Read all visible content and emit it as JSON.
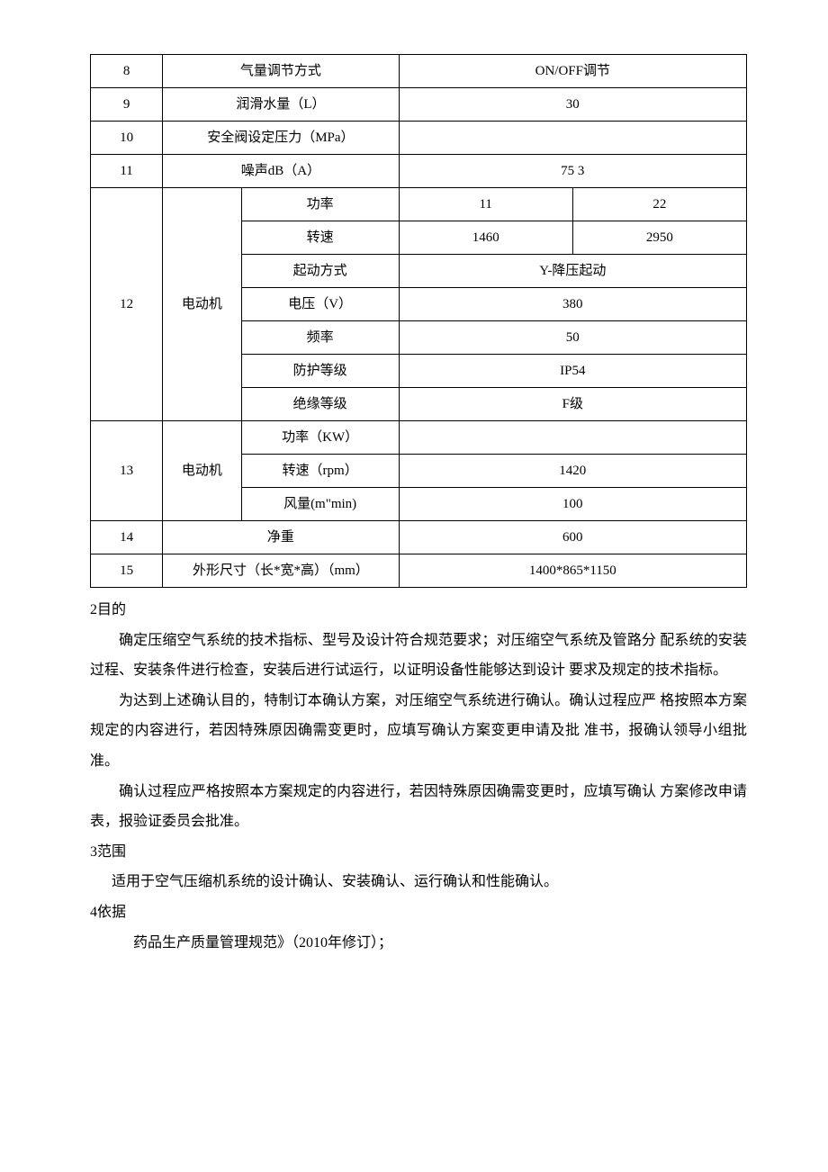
{
  "table": {
    "r8": {
      "no": "8",
      "param": "气量调节方式",
      "value": "ON/OFF调节"
    },
    "r9": {
      "no": "9",
      "param": "润滑水量（L）",
      "value": "30"
    },
    "r10": {
      "no": "10",
      "param": "安全阀设定压力（MPa）",
      "value": ""
    },
    "r11": {
      "no": "11",
      "param": "噪声dB（A）",
      "value": "75 3"
    },
    "r12": {
      "no": "12",
      "group": "电动机",
      "rows": {
        "power": {
          "label": "功率",
          "v1": "11",
          "v2": "22"
        },
        "speed": {
          "label": "转速",
          "v1": "1460",
          "v2": "2950"
        },
        "start": {
          "label": "起动方式",
          "v": "Y-降压起动"
        },
        "volt": {
          "label": "电压（V）",
          "v": "380"
        },
        "freq": {
          "label": "频率",
          "v": "50"
        },
        "ip": {
          "label": "防护等级",
          "v": "IP54"
        },
        "ins": {
          "label": "绝缘等级",
          "v": "F级"
        }
      }
    },
    "r13": {
      "no": "13",
      "group": "电动机",
      "rows": {
        "power": {
          "label": "功率（KW）",
          "v": ""
        },
        "speed": {
          "label": "转速（rpm）",
          "v": "1420"
        },
        "air": {
          "label": "风量(m\"min)",
          "v": "100"
        }
      }
    },
    "r14": {
      "no": "14",
      "param": "净重",
      "value": "600"
    },
    "r15": {
      "no": "15",
      "param": "外形尺寸（长*宽*高）（mm）",
      "value": "1400*865*1150"
    }
  },
  "text": {
    "s2_title": "2目的",
    "s2_p1": "确定压缩空气系统的技术指标、型号及设计符合规范要求；对压缩空气系统及管路分 配系统的安装过程、安装条件进行检查，安装后进行试运行，以证明设备性能够达到设计 要求及规定的技术指标。",
    "s2_p2": "为达到上述确认目的，特制订本确认方案，对压缩空气系统进行确认。确认过程应严 格按照本方案规定的内容进行，若因特殊原因确需变更时，应填写确认方案变更申请及批 准书，报确认领导小组批准。",
    "s2_p3": "确认过程应严格按照本方案规定的内容进行，若因特殊原因确需变更时，应填写确认 方案修改申请表，报验证委员会批准。",
    "s3_title": "3范围",
    "s3_p1": "适用于空气压缩机系统的设计确认、安装确认、运行确认和性能确认。",
    "s4_title": "4依据",
    "s4_p1": "药品生产质量管理规范》（2010年修订）；"
  }
}
